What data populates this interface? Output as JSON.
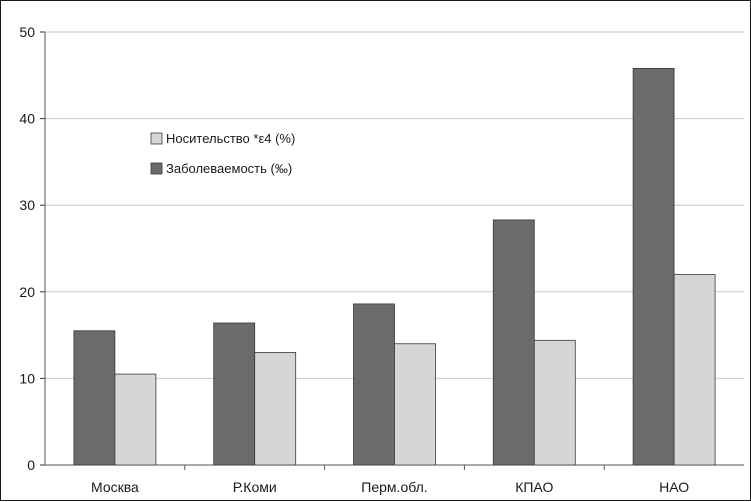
{
  "chart_data": {
    "type": "bar",
    "title": "",
    "xlabel": "",
    "ylabel": "",
    "categories": [
      "Москва",
      "Р.Коми",
      "Перм.обл.",
      "КПАО",
      "НАО"
    ],
    "series": [
      {
        "name": "Заболеваемость (‰)",
        "color": "#6b6b6b",
        "values": [
          15.5,
          16.4,
          18.6,
          28.3,
          45.8
        ]
      },
      {
        "name": "Носительство *ε4 (%)",
        "color": "#d6d6d6",
        "values": [
          10.5,
          13.0,
          14.0,
          14.4,
          22.0
        ]
      }
    ],
    "legend": {
      "placement": "upper-left-inside",
      "order": [
        1,
        0
      ]
    },
    "ylim": [
      0,
      50
    ],
    "yticks": [
      0,
      10,
      20,
      30,
      40,
      50
    ],
    "grid": {
      "horizontal": true,
      "vertical": false,
      "color": "#c8c8c8"
    }
  }
}
